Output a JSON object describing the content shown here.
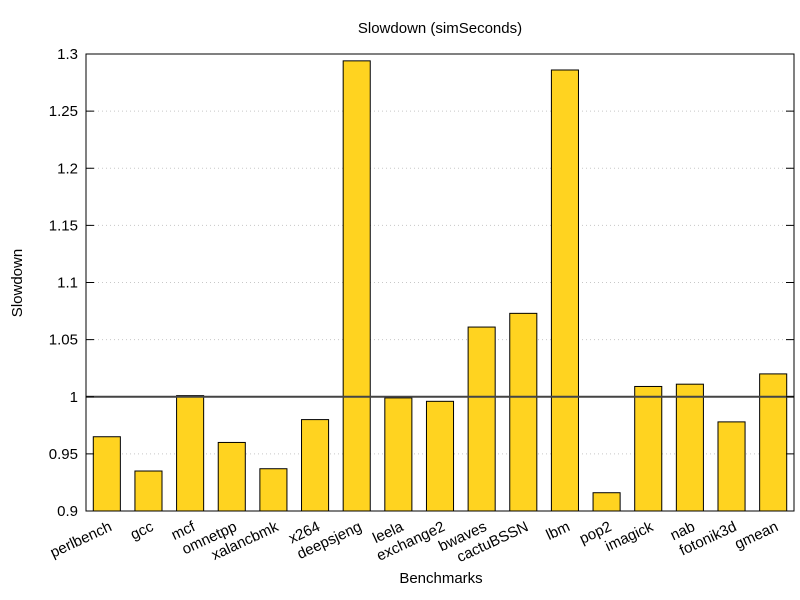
{
  "chart_data": {
    "type": "bar",
    "title": "Slowdown (simSeconds)",
    "xlabel": "Benchmarks",
    "ylabel": "Slowdown",
    "ylim": [
      0.9,
      1.3
    ],
    "yticks": [
      "0.9",
      "0.95",
      "1",
      "1.05",
      "1.1",
      "1.15",
      "1.2",
      "1.25",
      "1.3"
    ],
    "categories": [
      "perlbench",
      "gcc",
      "mcf",
      "omnetpp",
      "xalancbmk",
      "x264",
      "deepsjeng",
      "leela",
      "exchange2",
      "bwaves",
      "cactuBSSN",
      "lbm",
      "pop2",
      "imagick",
      "nab",
      "fotonik3d",
      "gmean"
    ],
    "values": [
      0.965,
      0.935,
      1.001,
      0.96,
      0.937,
      0.98,
      1.294,
      0.999,
      0.996,
      1.061,
      1.073,
      1.286,
      0.916,
      1.009,
      1.011,
      0.978,
      1.02
    ],
    "reference_line": 1.0,
    "grid": true,
    "bar_color": "#ffd320"
  }
}
